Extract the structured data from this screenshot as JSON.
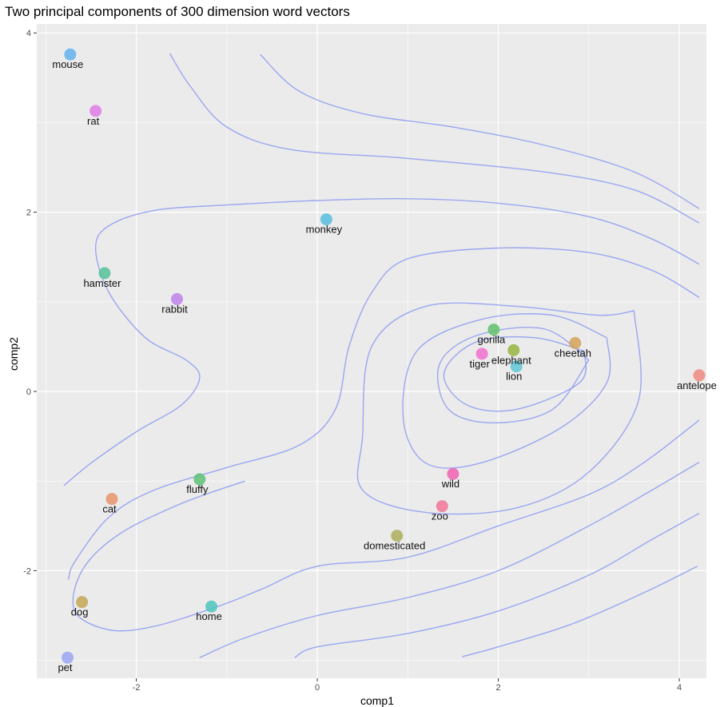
{
  "chart_data": {
    "type": "scatter",
    "title": "Two principal components of 300 dimension word vectors",
    "xlabel": "comp1",
    "ylabel": "comp2",
    "xlim": [
      -3.1,
      4.3
    ],
    "ylim": [
      -3.2,
      4.1
    ],
    "xticks": [
      -2,
      0,
      2,
      4
    ],
    "yticks": [
      -2,
      0,
      2,
      4
    ],
    "xtick_labels": [
      "-2",
      "0",
      "2",
      "4"
    ],
    "ytick_labels": [
      "-2",
      "0",
      "2",
      "4"
    ],
    "grid": true,
    "background": "#ebebeb",
    "grid_color": "#ffffff",
    "contour_color": "#9aa6f0",
    "points": [
      {
        "label": "mouse",
        "x": -2.73,
        "y": 3.76,
        "color": "#63b3ee"
      },
      {
        "label": "rat",
        "x": -2.45,
        "y": 3.13,
        "color": "#df7de8"
      },
      {
        "label": "monkey",
        "x": 0.1,
        "y": 1.92,
        "color": "#56bde0"
      },
      {
        "label": "hamster",
        "x": -2.35,
        "y": 1.32,
        "color": "#55c29b"
      },
      {
        "label": "rabbit",
        "x": -1.55,
        "y": 1.03,
        "color": "#c081ea"
      },
      {
        "label": "gorilla",
        "x": 1.95,
        "y": 0.69,
        "color": "#62c16b"
      },
      {
        "label": "elephant",
        "x": 2.17,
        "y": 0.46,
        "color": "#97b63e"
      },
      {
        "label": "cheetah",
        "x": 2.85,
        "y": 0.54,
        "color": "#d4a25a"
      },
      {
        "label": "tiger",
        "x": 1.82,
        "y": 0.42,
        "color": "#f26fcf"
      },
      {
        "label": "lion",
        "x": 2.2,
        "y": 0.28,
        "color": "#5ec7d3"
      },
      {
        "label": "antelope",
        "x": 4.22,
        "y": 0.18,
        "color": "#ef8a7f"
      },
      {
        "label": "wild",
        "x": 1.5,
        "y": -0.92,
        "color": "#f062b3"
      },
      {
        "label": "zoo",
        "x": 1.38,
        "y": -1.28,
        "color": "#f27698"
      },
      {
        "label": "cat",
        "x": -2.27,
        "y": -1.2,
        "color": "#e8936a"
      },
      {
        "label": "fluffy",
        "x": -1.3,
        "y": -0.98,
        "color": "#5cc276"
      },
      {
        "label": "domesticated",
        "x": 0.88,
        "y": -1.61,
        "color": "#adae5a"
      },
      {
        "label": "dog",
        "x": -2.6,
        "y": -2.35,
        "color": "#c3a655"
      },
      {
        "label": "home",
        "x": -1.17,
        "y": -2.4,
        "color": "#4fc4bd"
      },
      {
        "label": "pet",
        "x": -2.76,
        "y": -2.97,
        "color": "#9aa6f2"
      }
    ],
    "contours": [
      [
        [
          -1.63,
          3.77
        ],
        [
          -1.4,
          3.4
        ],
        [
          -1.0,
          2.95
        ],
        [
          -0.3,
          2.7
        ],
        [
          1.0,
          2.6
        ],
        [
          2.5,
          2.45
        ],
        [
          3.5,
          2.25
        ],
        [
          4.22,
          1.88
        ]
      ],
      [
        [
          -0.63,
          3.76
        ],
        [
          -0.2,
          3.35
        ],
        [
          0.5,
          3.1
        ],
        [
          1.5,
          2.95
        ],
        [
          2.5,
          2.75
        ],
        [
          3.5,
          2.45
        ],
        [
          4.22,
          2.04
        ]
      ],
      [
        [
          4.22,
          1.42
        ],
        [
          3.7,
          1.7
        ],
        [
          3.0,
          1.95
        ],
        [
          2.0,
          2.1
        ],
        [
          1.0,
          2.15
        ],
        [
          0.0,
          2.13
        ],
        [
          -1.0,
          2.08
        ],
        [
          -1.8,
          2.02
        ],
        [
          -2.3,
          1.85
        ],
        [
          -2.45,
          1.6
        ],
        [
          -2.3,
          1.1
        ],
        [
          -1.9,
          0.6
        ],
        [
          -1.45,
          0.35
        ],
        [
          -1.3,
          0.15
        ],
        [
          -1.5,
          -0.15
        ],
        [
          -2.0,
          -0.45
        ],
        [
          -2.5,
          -0.8
        ],
        [
          -2.8,
          -1.05
        ]
      ],
      [
        [
          4.22,
          1.05
        ],
        [
          3.7,
          1.35
        ],
        [
          3.0,
          1.55
        ],
        [
          2.0,
          1.6
        ],
        [
          1.0,
          1.48
        ],
        [
          0.6,
          1.1
        ],
        [
          0.35,
          0.5
        ],
        [
          0.2,
          -0.2
        ],
        [
          -0.2,
          -0.6
        ],
        [
          -1.0,
          -0.85
        ],
        [
          -1.8,
          -1.1
        ],
        [
          -2.3,
          -1.4
        ],
        [
          -2.68,
          -1.9
        ],
        [
          -2.75,
          -2.1
        ]
      ],
      [
        [
          3.5,
          0.9
        ],
        [
          3.1,
          0.85
        ],
        [
          2.2,
          0.95
        ],
        [
          1.2,
          0.95
        ],
        [
          0.6,
          0.5
        ],
        [
          0.5,
          -0.5
        ],
        [
          0.5,
          -1.1
        ],
        [
          1.2,
          -1.35
        ],
        [
          2.2,
          -1.3
        ],
        [
          3.0,
          -0.9
        ],
        [
          3.55,
          -0.1
        ],
        [
          3.5,
          0.9
        ]
      ],
      [
        [
          3.2,
          0.6
        ],
        [
          2.6,
          0.85
        ],
        [
          1.8,
          0.8
        ],
        [
          1.1,
          0.45
        ],
        [
          0.95,
          -0.3
        ],
        [
          1.2,
          -0.8
        ],
        [
          1.8,
          -0.8
        ],
        [
          2.7,
          -0.4
        ],
        [
          3.2,
          0.1
        ],
        [
          3.2,
          0.6
        ]
      ],
      [
        [
          3.0,
          0.35
        ],
        [
          2.5,
          0.7
        ],
        [
          1.75,
          0.62
        ],
        [
          1.35,
          0.3
        ],
        [
          1.45,
          -0.2
        ],
        [
          1.95,
          -0.35
        ],
        [
          2.6,
          -0.2
        ],
        [
          3.0,
          0.35
        ]
      ],
      [
        [
          2.95,
          0.45
        ],
        [
          2.4,
          0.6
        ],
        [
          1.75,
          0.55
        ],
        [
          1.4,
          0.2
        ],
        [
          1.65,
          -0.15
        ],
        [
          2.2,
          -0.2
        ],
        [
          2.9,
          0.1
        ],
        [
          2.95,
          0.45
        ]
      ],
      [
        [
          4.22,
          -0.32
        ],
        [
          3.6,
          -0.8
        ],
        [
          3.0,
          -1.15
        ],
        [
          2.0,
          -1.5
        ],
        [
          1.0,
          -1.85
        ],
        [
          0.0,
          -1.95
        ],
        [
          -0.6,
          -2.2
        ],
        [
          -1.1,
          -2.4
        ],
        [
          -1.8,
          -2.62
        ],
        [
          -2.3,
          -2.66
        ],
        [
          -2.68,
          -2.45
        ],
        [
          -2.6,
          -2.0
        ],
        [
          -2.2,
          -1.6
        ],
        [
          -1.5,
          -1.25
        ],
        [
          -0.8,
          -1.0
        ]
      ],
      [
        [
          4.22,
          -0.79
        ],
        [
          3.7,
          -1.1
        ],
        [
          3.0,
          -1.5
        ],
        [
          2.0,
          -2.0
        ],
        [
          1.0,
          -2.3
        ],
        [
          0.0,
          -2.5
        ],
        [
          -0.8,
          -2.75
        ],
        [
          -1.3,
          -2.97
        ]
      ],
      [
        [
          4.22,
          -1.36
        ],
        [
          3.7,
          -1.65
        ],
        [
          3.0,
          -2.05
        ],
        [
          2.0,
          -2.45
        ],
        [
          1.0,
          -2.7
        ],
        [
          0.0,
          -2.85
        ],
        [
          -0.25,
          -2.97
        ]
      ],
      [
        [
          4.2,
          -1.95
        ],
        [
          3.6,
          -2.25
        ],
        [
          2.8,
          -2.6
        ],
        [
          2.0,
          -2.85
        ],
        [
          1.6,
          -2.96
        ]
      ]
    ]
  }
}
